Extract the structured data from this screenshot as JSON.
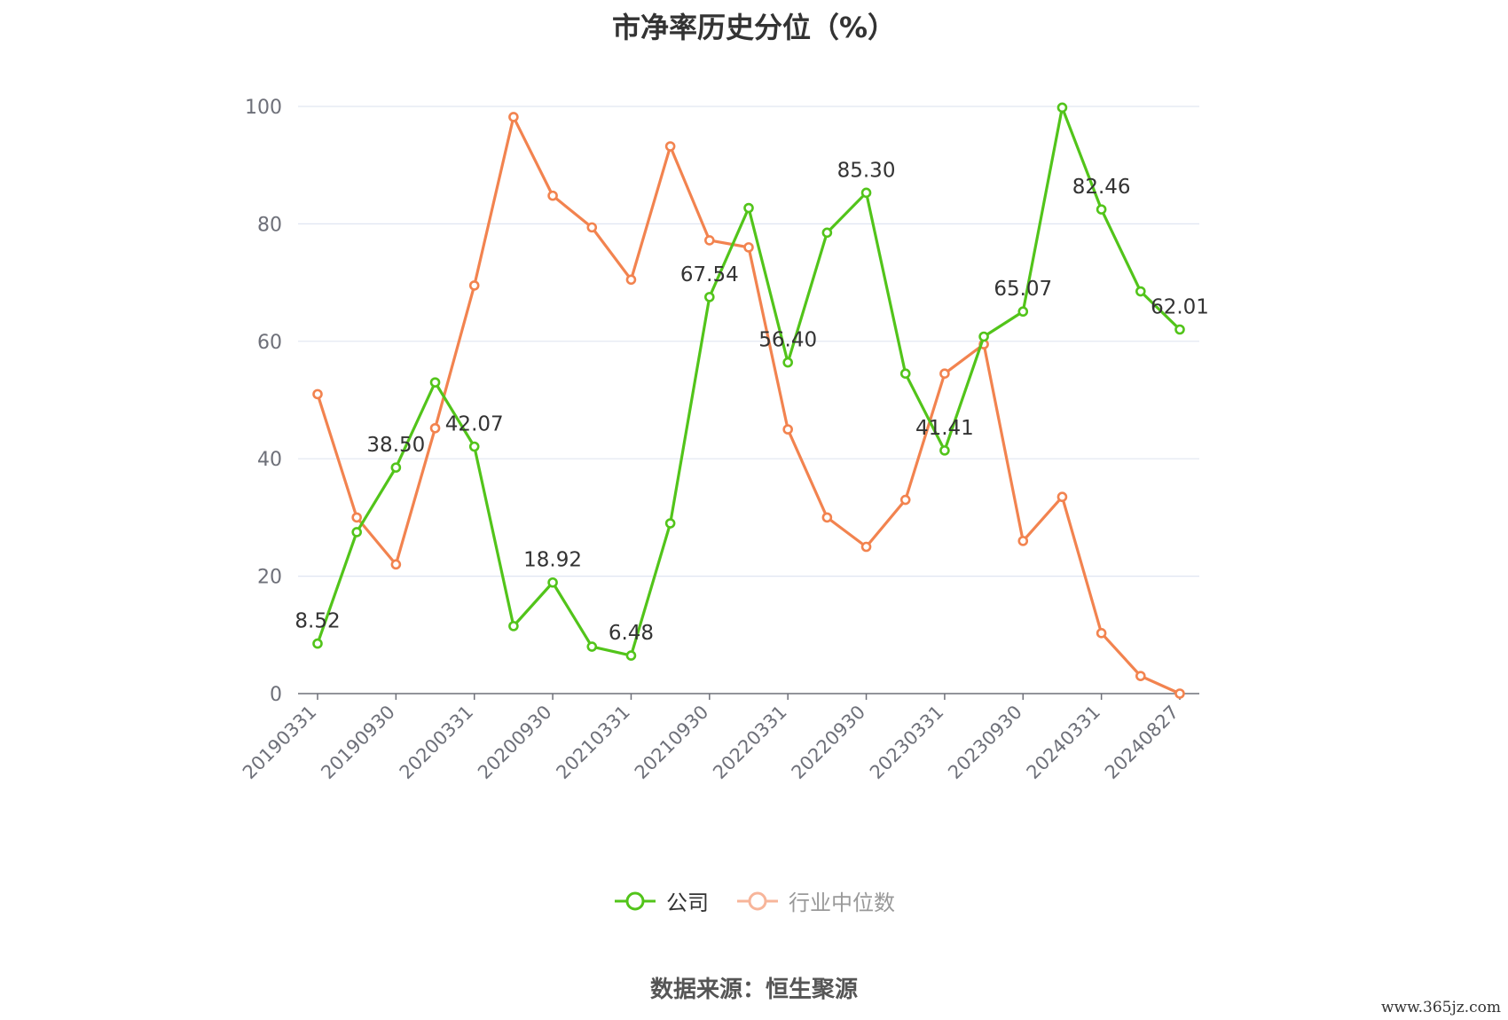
{
  "chart_data": {
    "type": "line",
    "title": "市净率历史分位（%）",
    "ylim": [
      0,
      100
    ],
    "yticks": [
      "0",
      "20",
      "40",
      "60",
      "80",
      "100"
    ],
    "grid": true,
    "legend_position": "bottom",
    "x": [
      "20190331",
      "20190630",
      "20190930",
      "20191231",
      "20200331",
      "20200630",
      "20200930",
      "20201231",
      "20210331",
      "20210630",
      "20210930",
      "20211231",
      "20220331",
      "20220630",
      "20220930",
      "20221231",
      "20230331",
      "20230630",
      "20230930",
      "20231231",
      "20240331",
      "20240630",
      "20240827"
    ],
    "x_tick_labels": [
      "20190331",
      "20190930",
      "20200331",
      "20200930",
      "20210331",
      "20210930",
      "20220331",
      "20220930",
      "20230331",
      "20230930",
      "20240331",
      "20240827"
    ],
    "series": [
      {
        "name": "公司",
        "color": "#52c41a",
        "values": [
          8.52,
          27.5,
          38.5,
          53.0,
          42.07,
          11.5,
          18.92,
          8.0,
          6.48,
          29.0,
          67.54,
          82.7,
          56.4,
          78.5,
          85.3,
          54.5,
          41.41,
          60.8,
          65.07,
          99.8,
          82.46,
          68.5,
          62.01
        ],
        "labels": [
          "8.52",
          "",
          "38.50",
          "",
          "42.07",
          "",
          "18.92",
          "",
          "6.48",
          "",
          "67.54",
          "",
          "56.40",
          "",
          "85.30",
          "",
          "41.41",
          "",
          "65.07",
          "",
          "82.46",
          "",
          "62.01"
        ]
      },
      {
        "name": "行业中位数",
        "color": "#f2834f",
        "values": [
          51.0,
          30.0,
          22.0,
          45.2,
          69.5,
          98.2,
          84.8,
          79.4,
          70.5,
          93.2,
          77.2,
          76.0,
          45.0,
          30.0,
          25.0,
          33.0,
          54.5,
          59.5,
          26.0,
          33.5,
          10.3,
          3.0,
          0.0
        ]
      }
    ]
  },
  "source_text": "数据来源：恒生聚源",
  "watermark": "www.365jz.com"
}
